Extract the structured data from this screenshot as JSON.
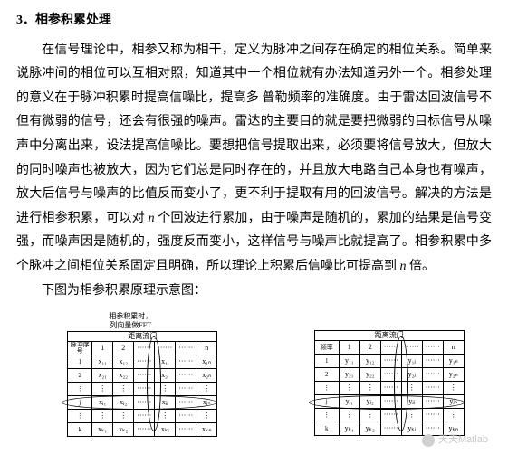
{
  "heading": "3．相参积累处理",
  "para1": "在信号理论中，相参又称为相干，定义为脉冲之间存在确定的相位关系。简单来说脉冲间的相位可以互相对照，知道其中一个相位就有办法知道另外一个。相参处理的意义在于脉冲积累时提高信噪比，提高多 普勒频率的准确度。由于雷达回波信号不但有微弱的信号，还会有很强的噪声。雷达的主要目的就是要把微弱的目标信号从噪声中分离出来，设法提高信噪比。要想把信号提取出来，必须要将信号放大，但放大的同时噪声也被放大，因为它们总是同时存在的，并且放大电路自己本身也有噪声，放大后信号与噪声的比值反而变小了，更不利于提取有用的回波信号。解决的方法是进行相参积累，可以对 ",
  "para1_n": "n",
  "para1_b": " 个回波进行累加，由于噪声是随机的，累加的结果是信号变强，而噪声因是随机的，强度反而变小，这样信号与噪声比就提高了。相参积累中多个脉冲之间相位关系固定且明确，所以理论上积累后信噪比可提高到 ",
  "para1_n2": "n",
  "para1_c": " 倍。",
  "para2": "下图为相参积累原理示意图：",
  "diagA": {
    "caption_l1": "相参积累时，",
    "caption_l2": "列向量做FFT",
    "top_label": "距离流门",
    "side_label": "脉冲序号",
    "cols": [
      "1",
      "2",
      "······",
      "······",
      "······",
      "n"
    ],
    "rows": [
      [
        "1",
        "x₁₁",
        "x₁₂",
        "······",
        "x₁ⱼ",
        "······",
        "x₁ₙ"
      ],
      [
        "2",
        "x₂₁",
        "x₂₂",
        "······",
        "x₂ⱼ",
        "······",
        "x₂ₙ"
      ],
      [
        "⋮",
        "⋮",
        "⋮",
        "······",
        "⋮",
        "······",
        "⋮"
      ],
      [
        "j",
        "xⱼ₁",
        "xⱼ₂",
        "······",
        "xⱼⱼ",
        "······",
        "xⱼₙ"
      ],
      [
        "⋮",
        "⋮",
        "⋮",
        "······",
        "⋮",
        "······",
        "⋮"
      ],
      [
        "k",
        "xₖ₁",
        "xₖ₂",
        "······",
        "xₖⱼ",
        "······",
        "xₖₙ"
      ]
    ]
  },
  "diagB": {
    "top_label": "距离流门",
    "side_label": "频率",
    "cols": [
      "1",
      "2",
      "······",
      "······",
      "······",
      "n"
    ],
    "rows": [
      [
        "1",
        "y₁₁",
        "y₁₂",
        "······",
        "y₁ⱼ",
        "······",
        "y₁ₙ"
      ],
      [
        "2",
        "y₂₁",
        "y₂₂",
        "······",
        "y₂ⱼ",
        "······",
        "y₂ₙ"
      ],
      [
        "⋮",
        "⋮",
        "⋮",
        "······",
        "⋮",
        "······",
        "⋮"
      ],
      [
        "j",
        "yⱼ₁",
        "yⱼ₂",
        "······",
        "yⱼⱼ",
        "······",
        "yⱼₙ"
      ],
      [
        "⋮",
        "⋮",
        "⋮",
        "······",
        "⋮",
        "······",
        "⋮"
      ],
      [
        "k",
        "yₖ₁",
        "yₖ₂",
        "······",
        "yₖⱼ",
        "······",
        "yₖₙ"
      ]
    ]
  },
  "watermark": "天天Matlab"
}
